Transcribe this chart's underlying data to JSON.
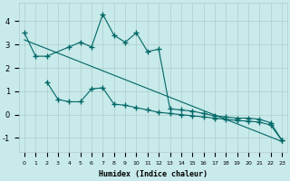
{
  "title": "",
  "xlabel": "Humidex (Indice chaleur)",
  "background_color": "#c8eaea",
  "grid_color": "#b0cccc",
  "line_color": "#006666",
  "xlim": [
    -0.5,
    23.5
  ],
  "ylim": [
    -1.6,
    4.8
  ],
  "xtick_labels": [
    "0",
    "1",
    "2",
    "3",
    "4",
    "5",
    "6",
    "7",
    "8",
    "9",
    "10",
    "11",
    "12",
    "13",
    "14",
    "15",
    "16",
    "17",
    "18",
    "19",
    "20",
    "21",
    "22",
    "23"
  ],
  "yticks": [
    -1,
    0,
    1,
    2,
    3,
    4
  ],
  "series1_x": [
    0,
    1,
    2,
    4,
    5,
    6,
    7,
    8,
    9,
    10,
    11,
    12,
    13,
    14,
    15,
    16,
    17,
    18,
    19,
    20,
    21,
    22,
    23
  ],
  "series1_y": [
    3.5,
    2.5,
    2.5,
    2.9,
    3.1,
    2.9,
    4.3,
    3.4,
    3.1,
    3.5,
    2.7,
    2.8,
    0.25,
    0.2,
    0.15,
    0.05,
    -0.05,
    -0.1,
    -0.15,
    -0.15,
    -0.2,
    -0.35,
    -1.1
  ],
  "series2_x": [
    2,
    3,
    4,
    5,
    6,
    7,
    8,
    9,
    10,
    11,
    12,
    13,
    14,
    15,
    16,
    17,
    18,
    19,
    20,
    21,
    22,
    23
  ],
  "series2_y": [
    1.4,
    0.65,
    0.55,
    0.55,
    1.1,
    1.15,
    0.45,
    0.4,
    0.3,
    0.2,
    0.1,
    0.05,
    0.0,
    -0.05,
    -0.1,
    -0.15,
    -0.2,
    -0.25,
    -0.28,
    -0.32,
    -0.45,
    -1.1
  ],
  "series3_x": [
    0,
    23
  ],
  "series3_y": [
    3.2,
    -1.15
  ]
}
